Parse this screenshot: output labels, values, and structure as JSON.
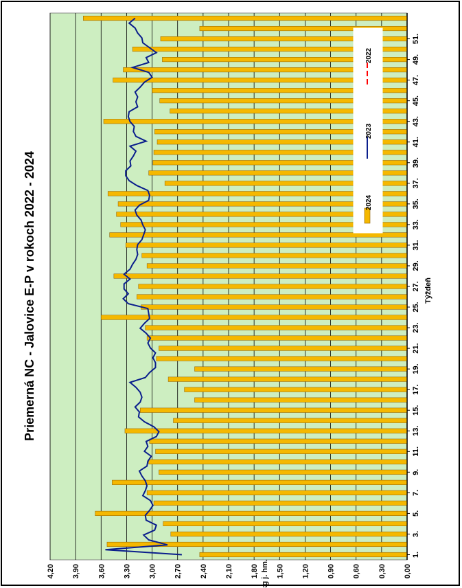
{
  "chart_data": {
    "type": "bar",
    "title": "Priemerná NC - Jalovice E-P v rokoch 2022 - 2024",
    "xlabel": "Týždeň",
    "ylabel": "€/kg j. hm.",
    "ylim": [
      0,
      4.2
    ],
    "ytick_labels": [
      "0,00",
      "0,30",
      "0,60",
      "0,90",
      "1,20",
      "1,50",
      "1,80",
      "2,10",
      "2,40",
      "2,70",
      "3,00",
      "3,30",
      "3,60",
      "3,90",
      "4,20"
    ],
    "xtick_labels": [
      "1.",
      "3.",
      "5.",
      "7.",
      "9.",
      "11.",
      "13.",
      "15.",
      "17.",
      "19.",
      "21.",
      "23.",
      "25.",
      "27.",
      "29.",
      "31.",
      "33.",
      "35.",
      "37.",
      "39.",
      "41.",
      "43.",
      "45.",
      "47.",
      "49.",
      "51."
    ],
    "grid": true,
    "legend_position": "right",
    "colors": {
      "plot_background": "#cdeec1",
      "bar_fill": "#f5b800",
      "bar_stroke": "#8a5a00",
      "line_2023": "#0a1e8c",
      "line_2022": "#ff0000",
      "grid": "#000000"
    },
    "series": [
      {
        "name": "2024",
        "type": "bar",
        "values": [
          2.44,
          3.53,
          2.78,
          2.87,
          3.67,
          2.98,
          3.06,
          3.47,
          2.92,
          3.04,
          2.96,
          3.03,
          3.32,
          2.75,
          3.14,
          2.5,
          2.62,
          2.81,
          2.5,
          2.95,
          2.92,
          3.06,
          3.08,
          3.6,
          3.13,
          3.18,
          3.16,
          3.45,
          3.06,
          3.12,
          3.31,
          3.5,
          3.37,
          3.42,
          3.4,
          3.52,
          2.85,
          3.04,
          2.99,
          2.98,
          2.94,
          2.97,
          3.57,
          2.79,
          2.91,
          3.0,
          3.46,
          3.34,
          2.88,
          3.23,
          2.9,
          2.44,
          3.81
        ]
      },
      {
        "name": "2023",
        "type": "line",
        "values": [
          2.65,
          3.55,
          2.82,
          3.04,
          3.1,
          2.97,
          2.95,
          3.07,
          3.08,
          3.03,
          2.99,
          3.02,
          3.11,
          3.08,
          3.06,
          3.08,
          3.12,
          3.15,
          3.06,
          3.05,
          3.01,
          3.09,
          3.05,
          3.07,
          2.95,
          2.92,
          2.98,
          3.09,
          3.16,
          3.15,
          3.2,
          3.14,
          3.12,
          3.14,
          3.19,
          3.26,
          3.08,
          3.03,
          2.96,
          2.96,
          2.99,
          2.96,
          3.02,
          3.05,
          3.02,
          3.07,
          3.14,
          3.09,
          3.03,
          3.04,
          3.05,
          3.28,
          3.34,
          3.28,
          3.33,
          3.33,
          3.26,
          3.33,
          3.26,
          3.23,
          3.19,
          3.17,
          3.18,
          3.17,
          3.12,
          3.1,
          3.08,
          3.11,
          3.13,
          3.18,
          3.2,
          3.15,
          3.04,
          3.03,
          3.05,
          3.18,
          3.27,
          3.31,
          3.31,
          3.25,
          3.26,
          3.22,
          3.19,
          3.26,
          3.07,
          3.19,
          3.22,
          3.21,
          3.26,
          3.28,
          3.27,
          3.17,
          3.19,
          3.17,
          3.2,
          3.14,
          3.09,
          3.0,
          3.04,
          3.23,
          3.04,
          3.07,
          2.95,
          3.03,
          3.11,
          3.12,
          3.17,
          3.2,
          3.27,
          3.2
        ]
      }
    ],
    "legend": [
      "2024",
      "2023",
      "2022"
    ]
  }
}
